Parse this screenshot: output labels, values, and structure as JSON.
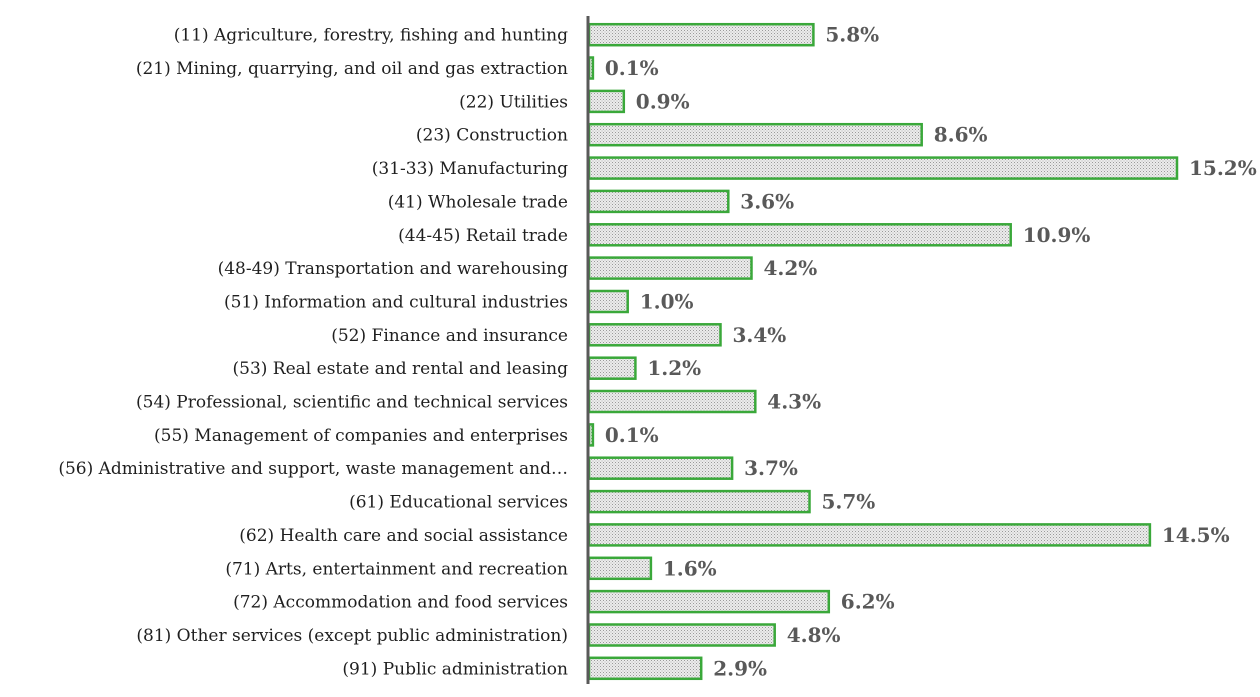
{
  "chart_data": {
    "type": "bar",
    "orientation": "horizontal",
    "categories": [
      "(11) Agriculture, forestry, fishing and hunting",
      "(21) Mining, quarrying, and oil and gas extraction",
      "(22) Utilities",
      "(23) Construction",
      "(31-33) Manufacturing",
      "(41) Wholesale trade",
      "(44-45) Retail trade",
      "(48-49) Transportation and warehousing",
      "(51) Information and cultural industries",
      "(52) Finance and insurance",
      "(53) Real estate and rental and leasing",
      "(54) Professional, scientific and technical services",
      "(55) Management of companies and enterprises",
      "(56) Administrative and support, waste management and…",
      "(61) Educational services",
      "(62) Health care and social assistance",
      "(71) Arts, entertainment and recreation",
      "(72) Accommodation and food services",
      "(81) Other services (except public administration)",
      "(91) Public administration"
    ],
    "values": [
      5.8,
      0.1,
      0.9,
      8.6,
      15.2,
      3.6,
      10.9,
      4.2,
      1.0,
      3.4,
      1.2,
      4.3,
      0.1,
      3.7,
      5.7,
      14.5,
      1.6,
      6.2,
      4.8,
      2.9
    ],
    "value_labels": [
      "5.8%",
      "0.1%",
      "0.9%",
      "8.6%",
      "15.2%",
      "3.6%",
      "10.9%",
      "4.2%",
      "1.0%",
      "3.4%",
      "1.2%",
      "4.3%",
      "0.1%",
      "3.7%",
      "5.7%",
      "14.5%",
      "1.6%",
      "6.2%",
      "4.8%",
      "2.9%"
    ],
    "xlim": [
      0,
      15.2
    ],
    "grid": false,
    "legend": "none",
    "bar_color": "#3aa83a",
    "bar_fill_color": "#c8c8c8",
    "axis_color": "#595959"
  }
}
